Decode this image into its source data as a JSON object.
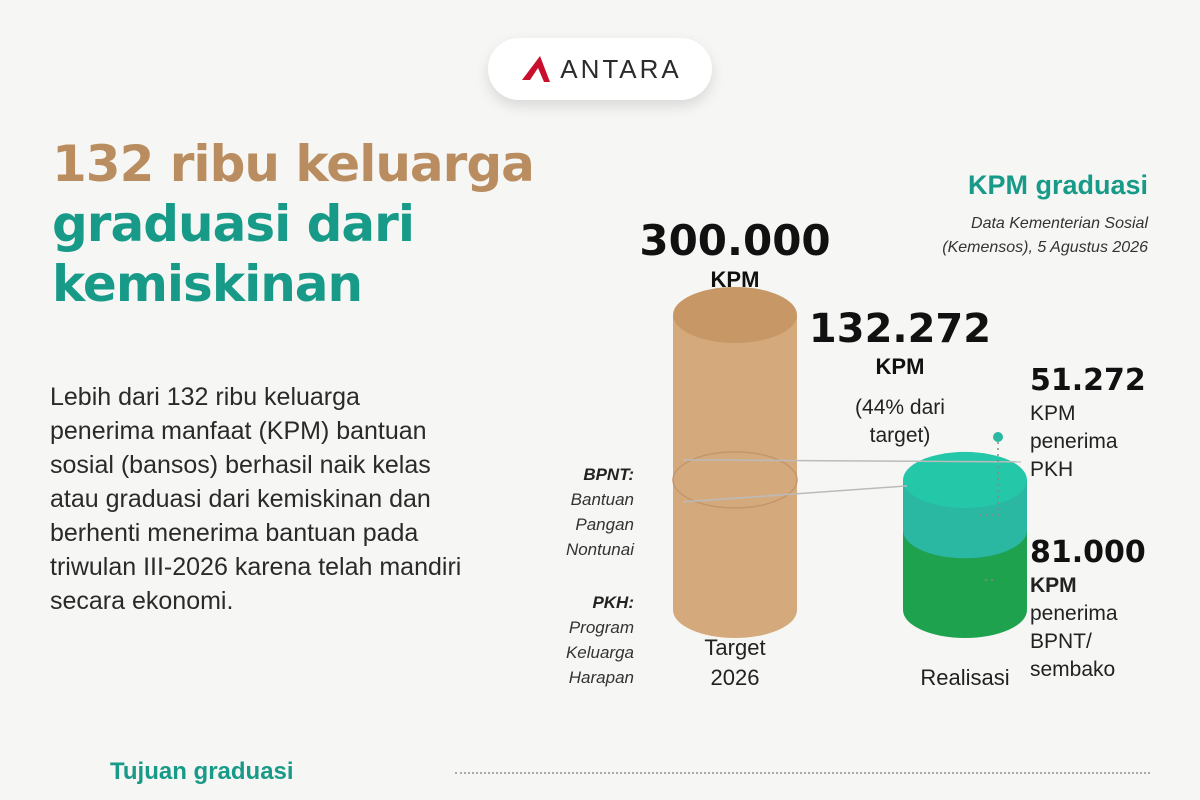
{
  "brand": {
    "name": "ANTARA",
    "accent": "#c8102e"
  },
  "headline": {
    "line1": "132 ribu keluarga",
    "line2": "graduasi dari",
    "line3": "kemiskinan"
  },
  "lead": "Lebih dari 132 ribu keluarga penerima manfaat (KPM) bantuan sosial (bansos) berhasil naik kelas atau graduasi dari kemiskinan dan berhenti menerima bantuan pada triwulan III-2026 karena telah mandiri secara ekonomi.",
  "chart_header": {
    "title": "KPM graduasi",
    "source_line1": "Data Kementerian Sosial",
    "source_line2": "(Kemensos), 5 Agustus 2026"
  },
  "chart_data": {
    "type": "bar",
    "title": "KPM graduasi",
    "categories": [
      "Target 2026",
      "Realisasi"
    ],
    "category_lines": [
      [
        "Target",
        "2026"
      ],
      [
        "Realisasi"
      ]
    ],
    "target": {
      "value": 300000,
      "value_label": "300.000",
      "unit": "KPM"
    },
    "realisasi": {
      "value": 132272,
      "value_label": "132.272",
      "unit": "KPM",
      "pct_line1": "(44% dari",
      "pct_line2": "target)"
    },
    "segments": [
      {
        "key": "PKH",
        "value": 51272,
        "value_label": "51.272",
        "lines": [
          "KPM",
          "penerima",
          "PKH"
        ]
      },
      {
        "key": "BPNT",
        "value": 81000,
        "value_label": "81.000",
        "lines": [
          "KPM",
          "penerima",
          "BPNT/",
          "sembako"
        ]
      }
    ],
    "legend": [
      {
        "abbr": "BPNT:",
        "lines": [
          "Bantuan",
          "Pangan",
          "Nontunai"
        ]
      },
      {
        "abbr": "PKH:",
        "lines": [
          "Program",
          "Keluarga",
          "Harapan"
        ]
      }
    ],
    "colors": {
      "target": "#d4aa7d",
      "target_dark": "#c79866",
      "pkh": "#2bb8a3",
      "pkh_top": "#25c7a9",
      "bpnt": "#1ea24e",
      "bpnt_top": "#17813f"
    }
  },
  "bottom": {
    "section_title": "Tujuan graduasi"
  }
}
